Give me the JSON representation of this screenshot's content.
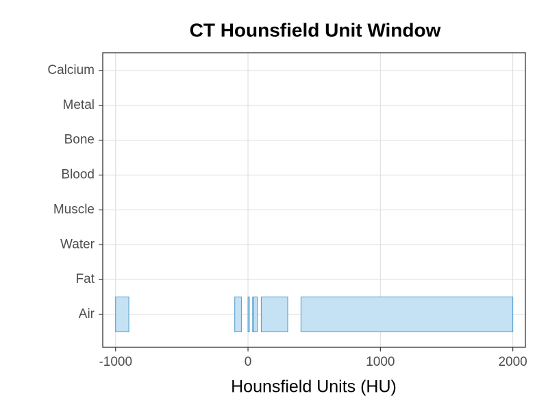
{
  "chart_data": {
    "type": "floating_bar",
    "title": "CT Hounsfield Unit Window",
    "x_label": "Hounsfield Units (HU)",
    "categories": [
      "Air",
      "Fat",
      "Water",
      "Muscle",
      "Blood",
      "Bone",
      "Metal",
      "Calcium"
    ],
    "bars": {
      "y": [
        "Air",
        "Air",
        "Air",
        "Air",
        "Air",
        "Air",
        "Air"
      ],
      "start": [
        -1000,
        -100,
        0,
        35,
        40,
        100,
        400
      ],
      "end": [
        -900,
        -50,
        10,
        55,
        70,
        300,
        2000
      ]
    },
    "color": "#c2dff3",
    "edge_color": "#4a98cc",
    "xlim": [
      -1097,
      2095
    ],
    "xticks": [
      -1000,
      0,
      1000,
      2000
    ],
    "grid": true
  }
}
